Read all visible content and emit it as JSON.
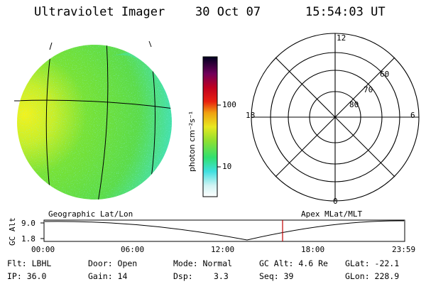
{
  "header": {
    "instrument": "Ultraviolet Imager",
    "date": "30 Oct 07",
    "time": "15:54:03 UT"
  },
  "colorbar": {
    "unit_label": "photon cm⁻²s⁻¹",
    "ticks": [
      "100",
      "10"
    ]
  },
  "polar_plot": {
    "mlt_labels": {
      "top": "12",
      "left": "18",
      "right": "6",
      "bottom": "0"
    },
    "lat_labels": [
      "60",
      "70",
      "80"
    ]
  },
  "panel_labels": {
    "left": "Geographic Lat/Lon",
    "right": "Apex MLat/MLT"
  },
  "timeline": {
    "y_axis_label": "GC Alt",
    "y_ticks": [
      "9.0",
      "1.8"
    ],
    "x_ticks": [
      "00:00",
      "06:00",
      "12:00",
      "18:00",
      "23:59"
    ]
  },
  "info": {
    "filter": "Flt: LBHL",
    "door": "Door: Open",
    "mode": "Mode: Normal",
    "gc_alt": "GC Alt: 4.6 Re",
    "glat": "GLat: -22.1",
    "ip": "IP: 36.0",
    "gain": "Gain: 14",
    "dsp_label": "Dsp:",
    "dsp_value": "3.3",
    "seq": "Seq: 39",
    "glon": "GLon: 228.9"
  },
  "colors": {
    "disk_base": "#64e036",
    "disk_bright": "#f0f020",
    "disk_dim": "#40e8c8",
    "marker": "#c00000"
  }
}
